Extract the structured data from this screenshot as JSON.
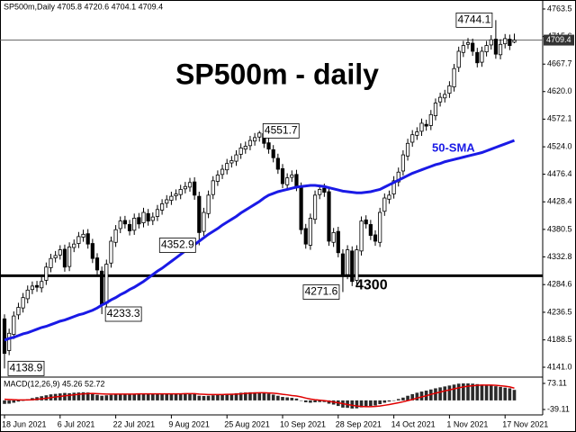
{
  "chart_data": {
    "type": "candlestick",
    "header": "SP500m,Daily  4705.8 4720.6 4704.1 4709.4",
    "title": "SP500m - daily",
    "categories": [
      "18 Jun 2021",
      null,
      null,
      null,
      null,
      null,
      null,
      null,
      null,
      null,
      null,
      null,
      "6 Jul 2021",
      null,
      null,
      null,
      null,
      null,
      null,
      null,
      null,
      null,
      null,
      null,
      "22 Jul 2021",
      null,
      null,
      null,
      null,
      null,
      null,
      null,
      null,
      null,
      null,
      null,
      "9 Aug 2021",
      null,
      null,
      null,
      null,
      null,
      null,
      null,
      null,
      null,
      null,
      null,
      "25 Aug 2021",
      null,
      null,
      null,
      null,
      null,
      null,
      null,
      null,
      null,
      null,
      null,
      "10 Sep 2021",
      null,
      null,
      null,
      null,
      null,
      null,
      null,
      null,
      null,
      null,
      null,
      "28 Sep 2021",
      null,
      null,
      null,
      null,
      null,
      null,
      null,
      null,
      null,
      null,
      null,
      "14 Oct 2021",
      null,
      null,
      null,
      null,
      null,
      null,
      null,
      null,
      null,
      null,
      null,
      "1 Nov 2021",
      null,
      null,
      null,
      null,
      null,
      null,
      null,
      null,
      null,
      null,
      null,
      "17 Nov 2021",
      null,
      null
    ],
    "open": [
      4225,
      4170,
      4198,
      4232,
      4244,
      4260,
      4276,
      4283,
      4279,
      4292,
      4314,
      4331,
      4336,
      4346,
      4316,
      4349,
      4356,
      4367,
      4373,
      4356,
      4331,
      4308,
      4252,
      4322,
      4358,
      4382,
      4396,
      4389,
      4379,
      4401,
      4392,
      4408,
      4396,
      4403,
      4414,
      4426,
      4431,
      4439,
      4441,
      4451,
      4454,
      4463,
      4438,
      4377,
      4408,
      4441,
      4464,
      4476,
      4484,
      4496,
      4499,
      4511,
      4520,
      4526,
      4534,
      4541,
      4547,
      4531,
      4519,
      4504,
      4486,
      4458,
      4471,
      4476,
      4454,
      4382,
      4353,
      4398,
      4441,
      4452,
      4446,
      4358,
      4377,
      4338,
      4302,
      4343,
      4292,
      4343,
      4397,
      4389,
      4371,
      4358,
      4412,
      4433,
      4442,
      4463,
      4482,
      4508,
      4532,
      4544,
      4551,
      4563,
      4561,
      4578,
      4602,
      4609,
      4617,
      4628,
      4662,
      4688,
      4702,
      4704,
      4688,
      4671,
      4689,
      4701,
      4711,
      4684,
      4703,
      4711,
      4705.8
    ],
    "high": [
      4233,
      4208,
      4238,
      4253,
      4270,
      4283,
      4290,
      4291,
      4298,
      4323,
      4338,
      4343,
      4353,
      4354,
      4358,
      4363,
      4376,
      4380,
      4381,
      4364,
      4339,
      4316,
      4328,
      4368,
      4388,
      4403,
      4404,
      4397,
      4408,
      4409,
      4418,
      4416,
      4410,
      4423,
      4433,
      4440,
      4446,
      4450,
      4458,
      4463,
      4470,
      4471,
      4446,
      4418,
      4448,
      4473,
      4483,
      4493,
      4503,
      4508,
      4518,
      4530,
      4533,
      4543,
      4548,
      4551.7,
      4551,
      4539,
      4527,
      4512,
      4494,
      4478,
      4483,
      4484,
      4462,
      4390,
      4408,
      4448,
      4458,
      4460,
      4454,
      4383,
      4385,
      4346,
      4353,
      4351,
      4353,
      4403,
      4405,
      4397,
      4379,
      4418,
      4443,
      4448,
      4473,
      4488,
      4518,
      4538,
      4553,
      4558,
      4573,
      4571,
      4588,
      4608,
      4618,
      4623,
      4638,
      4668,
      4698,
      4708,
      4713,
      4712,
      4696,
      4698,
      4708,
      4718,
      4744.1,
      4711,
      4720,
      4719,
      4720.6
    ],
    "low": [
      4138.9,
      4162,
      4190,
      4224,
      4236,
      4252,
      4268,
      4272,
      4271,
      4284,
      4306,
      4323,
      4328,
      4307,
      4308,
      4341,
      4348,
      4359,
      4347,
      4322,
      4302,
      4233.3,
      4244,
      4314,
      4350,
      4374,
      4382,
      4370,
      4371,
      4382,
      4384,
      4387,
      4388,
      4395,
      4406,
      4418,
      4423,
      4431,
      4433,
      4443,
      4446,
      4432,
      4352.9,
      4369,
      4400,
      4433,
      4456,
      4468,
      4476,
      4488,
      4491,
      4503,
      4512,
      4518,
      4526,
      4533,
      4522,
      4512,
      4497,
      4477,
      4452,
      4450,
      4463,
      4447,
      4372,
      4347,
      4345,
      4390,
      4433,
      4437,
      4352,
      4350,
      4332,
      4271.6,
      4294,
      4282,
      4284,
      4335,
      4382,
      4362,
      4352,
      4350,
      4404,
      4425,
      4434,
      4455,
      4474,
      4500,
      4524,
      4536,
      4543,
      4552,
      4553,
      4570,
      4594,
      4601,
      4609,
      4620,
      4654,
      4680,
      4694,
      4682,
      4662,
      4663,
      4681,
      4693,
      4677,
      4676,
      4695,
      4692,
      4704.1
    ],
    "close": [
      4165,
      4200,
      4230,
      4245,
      4262,
      4275,
      4282,
      4280,
      4290,
      4315,
      4330,
      4335,
      4345,
      4315,
      4350,
      4355,
      4368,
      4372,
      4355,
      4330,
      4310,
      4250,
      4320,
      4360,
      4380,
      4395,
      4390,
      4378,
      4400,
      4390,
      4410,
      4395,
      4402,
      4415,
      4425,
      4432,
      4438,
      4442,
      4450,
      4455,
      4462,
      4440,
      4375,
      4410,
      4440,
      4465,
      4475,
      4485,
      4495,
      4500,
      4510,
      4522,
      4525,
      4535,
      4540,
      4548,
      4530,
      4520,
      4505,
      4485,
      4460,
      4470,
      4475,
      4455,
      4380,
      4355,
      4400,
      4440,
      4450,
      4445,
      4360,
      4375,
      4340,
      4300,
      4345,
      4290,
      4345,
      4395,
      4390,
      4370,
      4360,
      4410,
      4435,
      4440,
      4465,
      4480,
      4510,
      4530,
      4545,
      4550,
      4565,
      4560,
      4580,
      4600,
      4610,
      4615,
      4630,
      4660,
      4690,
      4700,
      4705,
      4690,
      4670,
      4690,
      4700,
      4710,
      4685,
      4702,
      4712,
      4700,
      4709.4
    ],
    "up_color": "#ffffff",
    "down_color": "#000000",
    "ylim": [
      4125.4,
      4779.1
    ],
    "yticks": [
      4763.5,
      4715.6,
      4667.7,
      {
        "value": 4620,
        "label": "4620.0"
      },
      4572.1,
      {
        "value": 4524,
        "label": "4524.0"
      },
      4476.4,
      4428.4,
      4380.5,
      4332.8,
      4284.6,
      4236.5,
      4188.5,
      {
        "value": 4141,
        "label": "4141.0"
      }
    ],
    "sma": {
      "name": "50-SMA",
      "color": "#1a1ae6",
      "values": [
        4188,
        4191,
        4193,
        4196,
        4199,
        4201,
        4204,
        4207,
        4210,
        4212,
        4215,
        4218,
        4221,
        4223,
        4226,
        4229,
        4232,
        4234,
        4237,
        4240,
        4244,
        4249,
        4253,
        4258,
        4262,
        4267,
        4271,
        4276,
        4280,
        4285,
        4290,
        4296,
        4302,
        4308,
        4313,
        4319,
        4325,
        4331,
        4337,
        4343,
        4349,
        4354,
        4360,
        4366,
        4372,
        4377,
        4382,
        4388,
        4393,
        4398,
        4403,
        4409,
        4414,
        4419,
        4424,
        4429,
        4435,
        4440,
        4443,
        4446,
        4448,
        4450,
        4452,
        4454,
        4455,
        4456,
        4457,
        4457,
        4456,
        4455,
        4453,
        4451,
        4449,
        4447,
        4446,
        4445,
        4444,
        4444,
        4445,
        4446,
        4448,
        4450,
        4454,
        4458,
        4462,
        4466,
        4470,
        4474,
        4478,
        4481,
        4484,
        4487,
        4490,
        4493,
        4495,
        4498,
        4500,
        4502,
        4504,
        4506,
        4508,
        4510,
        4512,
        4514,
        4517,
        4520,
        4523,
        4526,
        4529,
        4532,
        4535
      ]
    },
    "level": {
      "value": 4300,
      "color": "#000000"
    },
    "annotations": [
      "4744.1",
      "4551.7",
      "4352.9",
      "4271.6",
      "4233.3",
      "4138.9"
    ],
    "macd": {
      "label": "MACD(12,26,9) 45.26 52.72",
      "ylim": [
        -39.11,
        73.11
      ],
      "yticks": [
        73.11,
        -39.11
      ],
      "histogram": {
        "color": "#2b2b2b",
        "values": [
          -15,
          -14,
          -10,
          -5,
          0,
          5,
          10,
          14,
          18,
          22,
          26,
          28,
          30,
          32,
          31,
          33,
          34,
          35,
          34,
          30,
          24,
          20,
          22,
          24,
          26,
          28,
          28,
          27,
          28,
          28,
          28,
          27,
          27,
          27,
          28,
          28,
          29,
          29,
          29,
          30,
          30,
          27,
          20,
          19,
          20,
          22,
          24,
          26,
          28,
          29,
          31,
          33,
          34,
          35,
          35,
          34,
          32,
          29,
          25,
          20,
          15,
          13,
          11,
          8,
          0,
          -8,
          -10,
          -8,
          -7,
          -7,
          -14,
          -18,
          -24,
          -31,
          -32,
          -35,
          -34,
          -30,
          -26,
          -24,
          -22,
          -16,
          -10,
          -5,
          0,
          6,
          12,
          20,
          27,
          33,
          38,
          42,
          47,
          52,
          56,
          60,
          64,
          68,
          72,
          73,
          73,
          72,
          70,
          68,
          66,
          65,
          61,
          58,
          55,
          52,
          45.26
        ]
      },
      "signal": {
        "color": "#e00000",
        "values": [
          5,
          4,
          3,
          2,
          2,
          2,
          3,
          5,
          7,
          9,
          12,
          15,
          17,
          20,
          22,
          24,
          26,
          28,
          29,
          30,
          29,
          28,
          27,
          27,
          27,
          27,
          27,
          27,
          27,
          28,
          28,
          28,
          28,
          28,
          28,
          28,
          28,
          28,
          28,
          29,
          29,
          29,
          27,
          26,
          25,
          25,
          25,
          25,
          26,
          26,
          27,
          28,
          30,
          31,
          32,
          33,
          33,
          32,
          31,
          29,
          26,
          24,
          21,
          19,
          15,
          10,
          6,
          3,
          1,
          -1,
          -4,
          -7,
          -10,
          -14,
          -18,
          -21,
          -24,
          -26,
          -27,
          -27,
          -26,
          -24,
          -21,
          -18,
          -14,
          -10,
          -6,
          -1,
          4,
          10,
          15,
          20,
          26,
          31,
          36,
          41,
          45,
          50,
          54,
          58,
          61,
          63,
          65,
          66,
          66,
          66,
          65,
          63,
          61,
          58,
          52.72
        ]
      }
    }
  }
}
